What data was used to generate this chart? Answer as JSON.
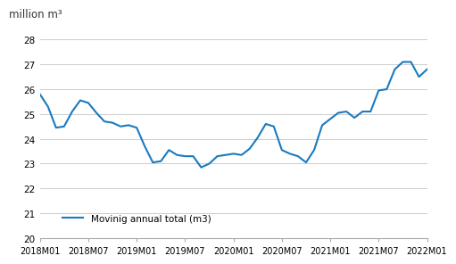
{
  "title_ylabel": "million m³",
  "legend_label": "Movinig annual total (m3)",
  "line_color": "#1a7abf",
  "line_width": 1.5,
  "ylim": [
    20,
    28
  ],
  "yticks": [
    20,
    21,
    22,
    23,
    24,
    25,
    26,
    27,
    28
  ],
  "xtick_labels": [
    "2018M01",
    "2018M07",
    "2019M01",
    "2019M07",
    "2020M01",
    "2020M07",
    "2021M01",
    "2021M07",
    "2022M01"
  ],
  "x_values": [
    0,
    1,
    2,
    3,
    4,
    5,
    6,
    7,
    8,
    9,
    10,
    11,
    12,
    13,
    14,
    15,
    16,
    17,
    18,
    19,
    20,
    21,
    22,
    23,
    24,
    25,
    26,
    27,
    28,
    29,
    30,
    31,
    32,
    33,
    34,
    35,
    36,
    37,
    38,
    39,
    40,
    41,
    42,
    43,
    44,
    45,
    46,
    47,
    48
  ],
  "y_values": [
    25.8,
    25.3,
    24.45,
    24.5,
    25.1,
    25.55,
    25.45,
    25.05,
    24.7,
    24.65,
    24.5,
    24.55,
    24.45,
    23.7,
    23.05,
    23.1,
    23.55,
    23.35,
    23.3,
    23.3,
    22.85,
    23.0,
    23.3,
    23.35,
    23.4,
    23.35,
    23.6,
    24.05,
    24.6,
    24.5,
    23.55,
    23.4,
    23.3,
    23.05,
    23.55,
    24.55,
    24.8,
    25.05,
    25.1,
    24.85,
    25.1,
    25.1,
    25.95,
    26.0,
    26.8,
    27.1,
    27.1,
    26.5,
    26.8
  ],
  "x_tick_positions": [
    0,
    6,
    12,
    18,
    24,
    30,
    36,
    42,
    48
  ],
  "background_color": "#ffffff",
  "grid_color": "#cccccc"
}
